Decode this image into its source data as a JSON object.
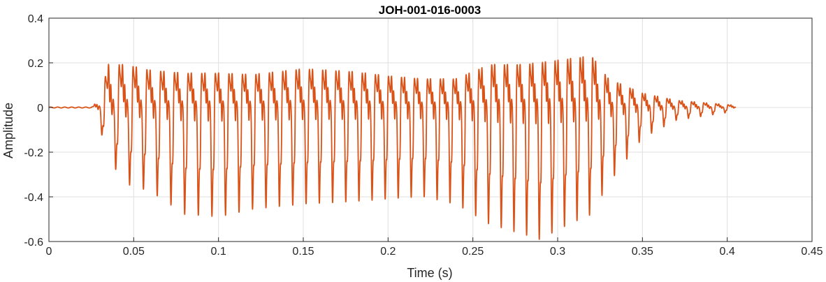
{
  "chart_data": {
    "type": "line",
    "title": "JOH-001-016-0003",
    "xlabel": "Time (s)",
    "ylabel": "Amplitude",
    "xlim": [
      0,
      0.45
    ],
    "ylim": [
      -0.6,
      0.4
    ],
    "xticks": [
      0,
      0.05,
      0.1,
      0.15,
      0.2,
      0.25,
      0.3,
      0.35,
      0.4,
      0.45
    ],
    "xtick_labels": [
      "0",
      "0.05",
      "0.1",
      "0.15",
      "0.2",
      "0.25",
      "0.3",
      "0.35",
      "0.4",
      "0.45"
    ],
    "yticks": [
      -0.6,
      -0.4,
      -0.2,
      0,
      0.2,
      0.4
    ],
    "ytick_labels": [
      "-0.6",
      "-0.4",
      "-0.2",
      "0",
      "0.2",
      "0.4"
    ],
    "grid": true,
    "series": [
      {
        "color": "#D95319",
        "signal": {
          "start_s": 0.0,
          "end_s": 0.405,
          "onset_s": 0.025,
          "f0_hz_start": 120,
          "f0_hz_end": 140,
          "envelope_pos": [
            [
              0,
              0
            ],
            [
              0.025,
              0
            ],
            [
              0.03,
              0.06
            ],
            [
              0.035,
              0.3
            ],
            [
              0.045,
              0.3
            ],
            [
              0.06,
              0.26
            ],
            [
              0.08,
              0.24
            ],
            [
              0.1,
              0.24
            ],
            [
              0.12,
              0.23
            ],
            [
              0.15,
              0.27
            ],
            [
              0.18,
              0.25
            ],
            [
              0.2,
              0.22
            ],
            [
              0.22,
              0.2
            ],
            [
              0.24,
              0.2
            ],
            [
              0.26,
              0.3
            ],
            [
              0.28,
              0.3
            ],
            [
              0.3,
              0.33
            ],
            [
              0.32,
              0.36
            ],
            [
              0.33,
              0.2
            ],
            [
              0.35,
              0.1
            ],
            [
              0.37,
              0.05
            ],
            [
              0.39,
              0.03
            ],
            [
              0.405,
              0.015
            ]
          ],
          "envelope_neg": [
            [
              0,
              0
            ],
            [
              0.025,
              0
            ],
            [
              0.03,
              -0.08
            ],
            [
              0.035,
              -0.2
            ],
            [
              0.045,
              -0.3
            ],
            [
              0.06,
              -0.33
            ],
            [
              0.08,
              -0.42
            ],
            [
              0.1,
              -0.43
            ],
            [
              0.12,
              -0.4
            ],
            [
              0.15,
              -0.38
            ],
            [
              0.18,
              -0.37
            ],
            [
              0.2,
              -0.36
            ],
            [
              0.22,
              -0.35
            ],
            [
              0.24,
              -0.38
            ],
            [
              0.26,
              -0.46
            ],
            [
              0.28,
              -0.5
            ],
            [
              0.29,
              -0.52
            ],
            [
              0.3,
              -0.48
            ],
            [
              0.32,
              -0.42
            ],
            [
              0.33,
              -0.3
            ],
            [
              0.35,
              -0.12
            ],
            [
              0.37,
              -0.05
            ],
            [
              0.39,
              -0.03
            ],
            [
              0.405,
              -0.015
            ]
          ]
        }
      }
    ]
  }
}
